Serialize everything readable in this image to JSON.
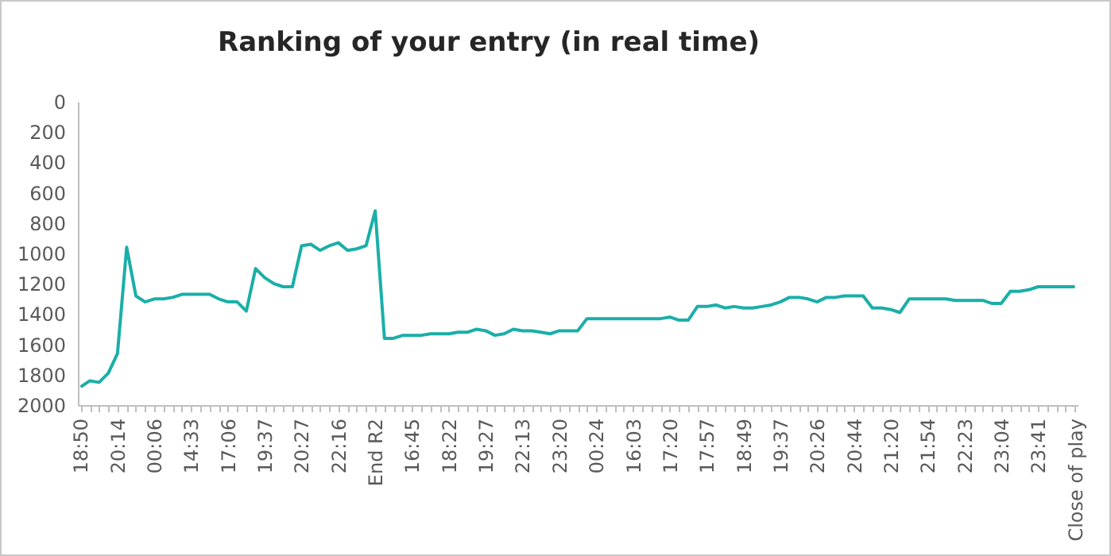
{
  "chart_data": {
    "type": "line",
    "title": "Ranking of your entry (in real time)",
    "categories": [
      "18:50",
      null,
      null,
      null,
      "20:14",
      null,
      null,
      null,
      "00:06",
      null,
      null,
      null,
      "14:33",
      null,
      null,
      null,
      "17:06",
      null,
      null,
      null,
      "19:37",
      null,
      null,
      null,
      "20:27",
      null,
      null,
      null,
      "22:16",
      null,
      null,
      null,
      "End R2",
      null,
      null,
      null,
      "16:45",
      null,
      null,
      null,
      "18:22",
      null,
      null,
      null,
      "19:27",
      null,
      null,
      null,
      "22:13",
      null,
      null,
      null,
      "23:20",
      null,
      null,
      null,
      "00:24",
      null,
      null,
      null,
      "16:03",
      null,
      null,
      null,
      "17:20",
      null,
      null,
      null,
      "17:57",
      null,
      null,
      null,
      "18:49",
      null,
      null,
      null,
      "19:37",
      null,
      null,
      null,
      "20:26",
      null,
      null,
      null,
      "20:44",
      null,
      null,
      null,
      "21:20",
      null,
      null,
      null,
      "21:54",
      null,
      null,
      null,
      "22:23",
      null,
      null,
      null,
      "23:04",
      null,
      null,
      null,
      "23:41",
      null,
      null,
      null,
      "Close of play"
    ],
    "values": [
      1880,
      1840,
      1850,
      1790,
      1660,
      960,
      1280,
      1320,
      1300,
      1300,
      1290,
      1270,
      1270,
      1270,
      1270,
      1300,
      1320,
      1320,
      1380,
      1100,
      1160,
      1200,
      1220,
      1220,
      950,
      940,
      980,
      950,
      930,
      980,
      970,
      950,
      720,
      1560,
      1560,
      1540,
      1540,
      1540,
      1530,
      1530,
      1530,
      1520,
      1520,
      1500,
      1510,
      1540,
      1530,
      1500,
      1510,
      1510,
      1520,
      1530,
      1510,
      1510,
      1510,
      1430,
      1430,
      1430,
      1430,
      1430,
      1430,
      1430,
      1430,
      1430,
      1420,
      1440,
      1440,
      1350,
      1350,
      1340,
      1360,
      1350,
      1360,
      1360,
      1350,
      1340,
      1320,
      1290,
      1290,
      1300,
      1320,
      1290,
      1290,
      1280,
      1280,
      1280,
      1360,
      1360,
      1370,
      1390,
      1300,
      1300,
      1300,
      1300,
      1300,
      1310,
      1310,
      1310,
      1310,
      1330,
      1330,
      1250,
      1250,
      1240,
      1220,
      1220,
      1220,
      1220,
      1220
    ],
    "color": "#1aafa8",
    "ylim": [
      2000,
      0
    ],
    "yticks": [
      0,
      200,
      400,
      600,
      800,
      1000,
      1200,
      1400,
      1600,
      1800,
      2000
    ],
    "grid": false
  }
}
